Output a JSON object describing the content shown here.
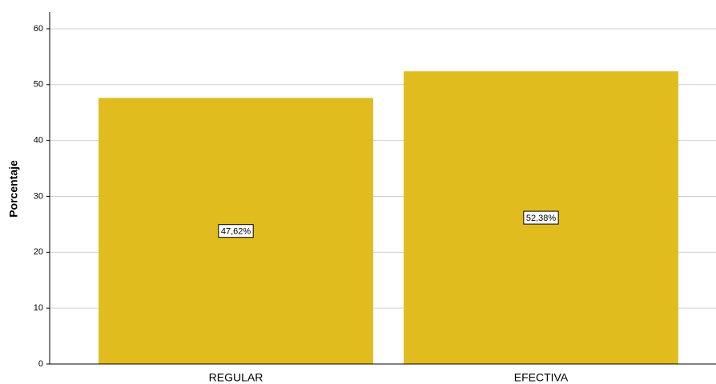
{
  "chart_data": {
    "type": "bar",
    "y_label": "Porcentaje",
    "categories": [
      "REGULAR",
      "EFECTIVA"
    ],
    "values": [
      47.62,
      52.38
    ],
    "value_labels": [
      "47,62%",
      "52,38%"
    ],
    "color": "#e0bc1f",
    "ylim": [
      0,
      63
    ],
    "yticks": [
      0,
      10,
      20,
      30,
      40,
      50,
      60
    ],
    "grid": true
  }
}
